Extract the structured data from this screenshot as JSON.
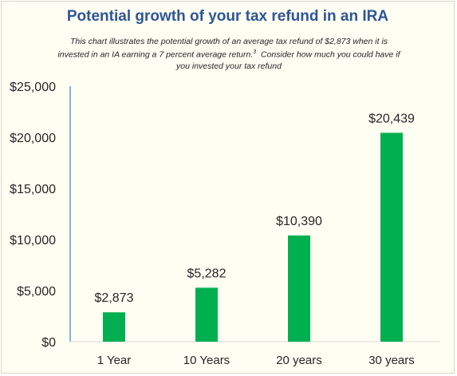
{
  "chart_data": {
    "type": "bar",
    "title": "Potential growth of your tax refund in an IRA",
    "subtitle": {
      "line1": "This chart illustrates the potential growth of an average tax refund of $2,873 when it is",
      "line2_main": "invested in an IA earning a 7 percent average return.",
      "line2_sup": "3",
      "line2_rest": "  Consider how much you could have if",
      "line3": "you invested your tax refund"
    },
    "categories": [
      "1 Year",
      "10 Years",
      "20 years",
      "30 years"
    ],
    "values": [
      2873,
      5282,
      10390,
      20439
    ],
    "data_labels": [
      "$2,873",
      "$5,282",
      "$10,390",
      "$20,439"
    ],
    "y_ticks": [
      0,
      5000,
      10000,
      15000,
      20000,
      25000
    ],
    "y_tick_labels": [
      "$0",
      "$5,000",
      "$10,000",
      "$15,000",
      "$20,000",
      "$25,000"
    ],
    "ylim": [
      0,
      25000
    ],
    "xlabel": "",
    "ylabel": "",
    "grid": false,
    "legend": "none",
    "bar_color": "#00b050",
    "axis_color": "#5b9bd5"
  }
}
